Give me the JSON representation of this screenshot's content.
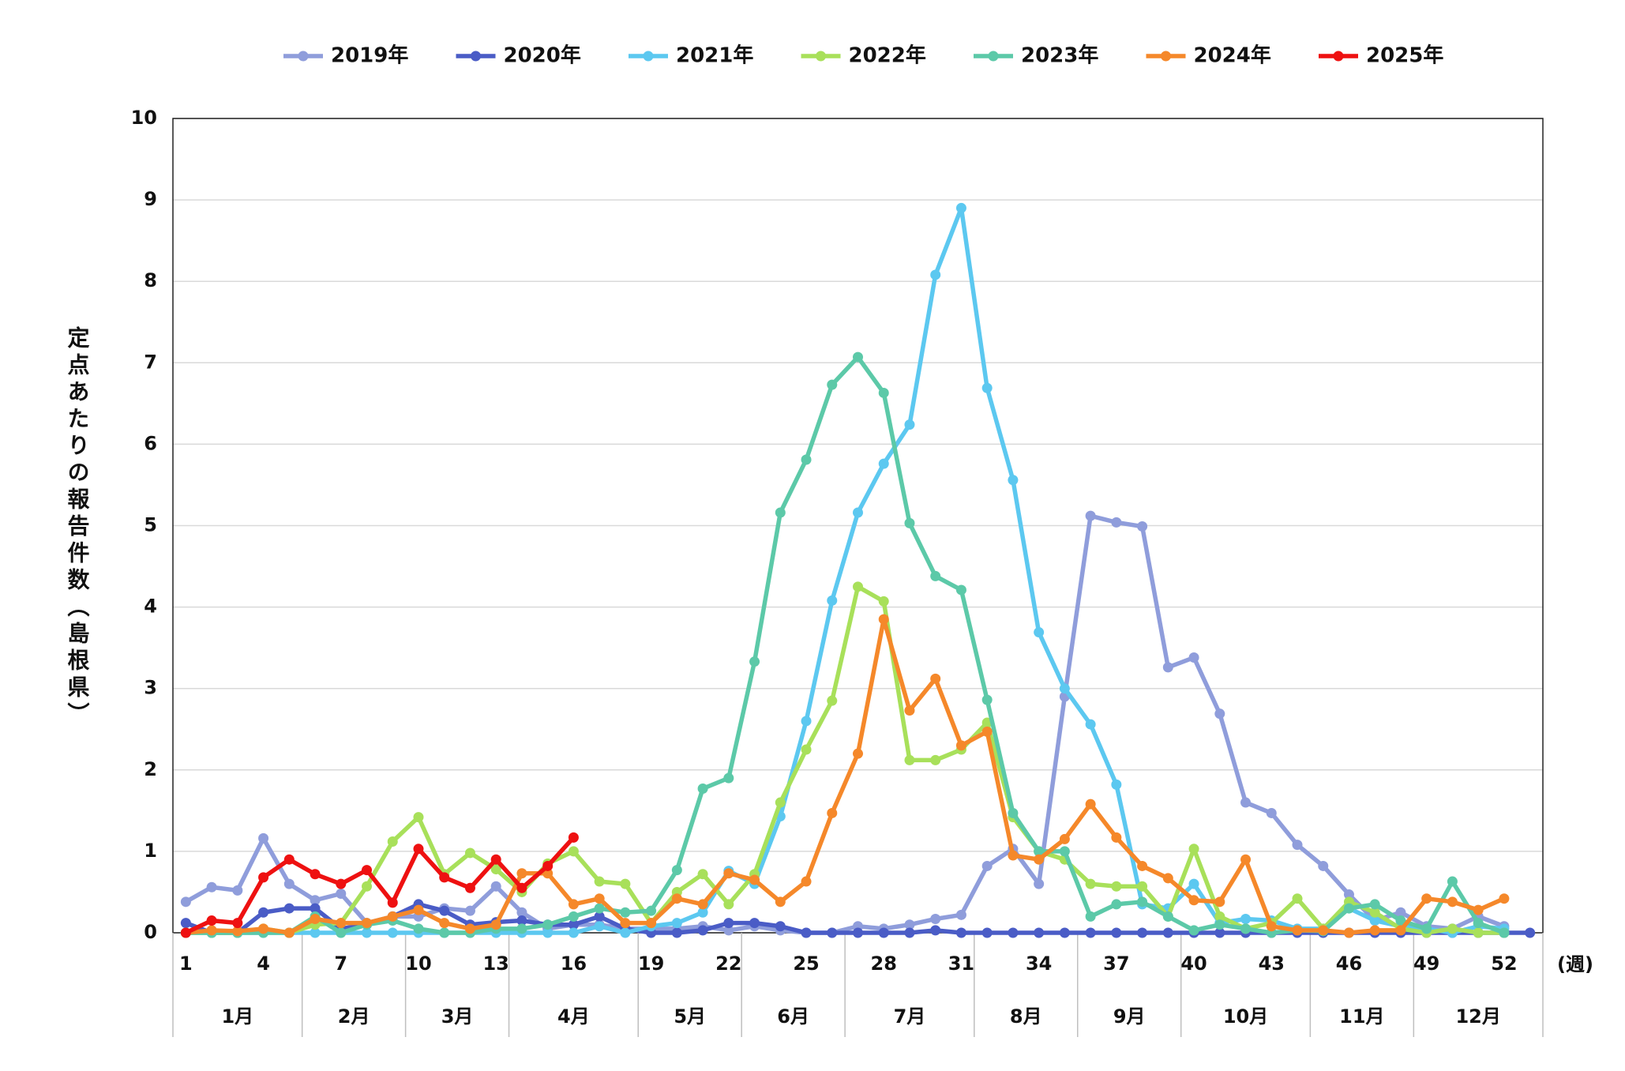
{
  "chart_data": {
    "type": "line",
    "y_label": "定点あたりの報告件数（島根県）",
    "x_label": "(週)",
    "categories": [
      "1",
      null,
      null,
      "4",
      null,
      null,
      "7",
      null,
      null,
      "10",
      null,
      null,
      "13",
      null,
      null,
      "16",
      null,
      null,
      "19",
      null,
      null,
      "22",
      null,
      null,
      "25",
      null,
      null,
      "28",
      null,
      null,
      "31",
      null,
      null,
      "34",
      null,
      null,
      "37",
      null,
      null,
      "40",
      null,
      null,
      "43",
      null,
      null,
      "46",
      null,
      null,
      "49",
      null,
      null,
      "52",
      null
    ],
    "month_groups": [
      {
        "label": "1月",
        "weeks": 5
      },
      {
        "label": "2月",
        "weeks": 4
      },
      {
        "label": "3月",
        "weeks": 4
      },
      {
        "label": "4月",
        "weeks": 5
      },
      {
        "label": "5月",
        "weeks": 4
      },
      {
        "label": "6月",
        "weeks": 4
      },
      {
        "label": "7月",
        "weeks": 5
      },
      {
        "label": "8月",
        "weeks": 4
      },
      {
        "label": "9月",
        "weeks": 4
      },
      {
        "label": "10月",
        "weeks": 5
      },
      {
        "label": "11月",
        "weeks": 4
      },
      {
        "label": "12月",
        "weeks": 5
      }
    ],
    "ylim": [
      0,
      10
    ],
    "yticks": [
      0,
      1,
      2,
      3,
      4,
      5,
      6,
      7,
      8,
      9,
      10
    ],
    "grid": true,
    "legend": "top",
    "series": [
      {
        "name": "2019年",
        "color": "#8f9ddb",
        "values": [
          0.38,
          0.56,
          0.52,
          1.16,
          0.6,
          0.4,
          0.48,
          0.12,
          0.2,
          0.2,
          0.3,
          0.27,
          0.57,
          0.25,
          0.05,
          0.1,
          0.1,
          0.05,
          0.05,
          0.05,
          0.08,
          0.03,
          0.08,
          0.03,
          0,
          0,
          0.08,
          0.05,
          0.1,
          0.17,
          0.22,
          0.82,
          1.03,
          0.6,
          2.9,
          5.12,
          5.04,
          4.99,
          3.26,
          3.38,
          2.69,
          1.6,
          1.47,
          1.08,
          0.82,
          0.47,
          0.15,
          0.25,
          0.08,
          0.05,
          0.2,
          0.08,
          null
        ]
      },
      {
        "name": "2020年",
        "color": "#4a5cc6",
        "values": [
          0.12,
          0,
          0,
          0.25,
          0.3,
          0.3,
          0.05,
          0.1,
          0.2,
          0.35,
          0.27,
          0.1,
          0.13,
          0.15,
          0.1,
          0.1,
          0.2,
          0.05,
          0,
          0,
          0.03,
          0.12,
          0.12,
          0.08,
          0,
          0,
          0,
          0,
          0,
          0.03,
          0,
          0,
          0,
          0,
          0,
          0,
          0,
          0,
          0,
          0,
          0,
          0,
          0,
          0,
          0,
          0,
          0,
          0,
          0,
          0,
          0,
          0,
          0
        ]
      },
      {
        "name": "2021年",
        "color": "#5cc8f0",
        "values": [
          0,
          0,
          0,
          0,
          0,
          0,
          0,
          0,
          0,
          0,
          0,
          0,
          0,
          0,
          0,
          0,
          0.08,
          0,
          0.08,
          0.12,
          0.25,
          0.76,
          0.6,
          1.43,
          2.6,
          4.08,
          5.16,
          5.76,
          6.24,
          8.08,
          8.9,
          6.69,
          5.56,
          3.69,
          3.0,
          2.56,
          1.82,
          0.35,
          0.3,
          0.6,
          0.12,
          0.17,
          0.15,
          0.05,
          0.05,
          0.3,
          0.15,
          0.08,
          0.05,
          0,
          0.08,
          0.05,
          null
        ]
      },
      {
        "name": "2022年",
        "color": "#a8e05a",
        "values": [
          0,
          0,
          0,
          0.05,
          0,
          0.1,
          0.12,
          0.57,
          1.12,
          1.42,
          0.72,
          0.98,
          0.78,
          0.5,
          0.85,
          1.0,
          0.63,
          0.6,
          0.12,
          0.5,
          0.72,
          0.35,
          0.72,
          1.6,
          2.25,
          2.85,
          4.25,
          4.07,
          2.12,
          2.12,
          2.25,
          2.58,
          1.42,
          1.0,
          0.9,
          0.6,
          0.57,
          0.57,
          0.2,
          1.03,
          0.2,
          0.05,
          0.12,
          0.42,
          0.05,
          0.38,
          0.25,
          0.05,
          0,
          0.05,
          0,
          0,
          null
        ]
      },
      {
        "name": "2023年",
        "color": "#5cc9a8",
        "values": [
          0,
          0,
          0,
          0,
          0,
          0.2,
          0,
          0.1,
          0.15,
          0.05,
          0,
          0,
          0.05,
          0.05,
          0.1,
          0.2,
          0.3,
          0.25,
          0.27,
          0.77,
          1.77,
          1.9,
          3.33,
          5.16,
          5.81,
          6.73,
          7.07,
          6.63,
          5.03,
          4.38,
          4.21,
          2.86,
          1.47,
          1.0,
          1.0,
          0.2,
          0.35,
          0.38,
          0.2,
          0.03,
          0.1,
          0.05,
          0,
          0.03,
          0.02,
          0.3,
          0.35,
          0.15,
          0.05,
          0.63,
          0.12,
          0,
          null
        ]
      },
      {
        "name": "2024年",
        "color": "#f5882a",
        "values": [
          0,
          0.03,
          0.02,
          0.05,
          0,
          0.17,
          0.12,
          0.12,
          0.2,
          0.28,
          0.12,
          0.05,
          0.1,
          0.73,
          0.73,
          0.35,
          0.42,
          0.12,
          0.12,
          0.42,
          0.35,
          0.73,
          0.65,
          0.38,
          0.63,
          1.47,
          2.2,
          3.85,
          2.73,
          3.12,
          2.3,
          2.47,
          0.95,
          0.9,
          1.15,
          1.58,
          1.17,
          0.82,
          0.67,
          0.4,
          0.38,
          0.9,
          0.08,
          0.03,
          0.03,
          0,
          0.03,
          0.03,
          0.42,
          0.38,
          0.28,
          0.42,
          null
        ]
      },
      {
        "name": "2025年",
        "color": "#ee1111",
        "values": [
          0,
          0.15,
          0.12,
          0.68,
          0.9,
          0.72,
          0.6,
          0.77,
          0.37,
          1.03,
          0.68,
          0.55,
          0.9,
          0.55,
          0.82,
          1.17,
          null,
          null,
          null,
          null,
          null,
          null,
          null,
          null,
          null,
          null,
          null,
          null,
          null,
          null,
          null,
          null,
          null,
          null,
          null,
          null,
          null,
          null,
          null,
          null,
          null,
          null,
          null,
          null,
          null,
          null,
          null,
          null,
          null,
          null,
          null,
          null,
          null
        ]
      }
    ]
  }
}
